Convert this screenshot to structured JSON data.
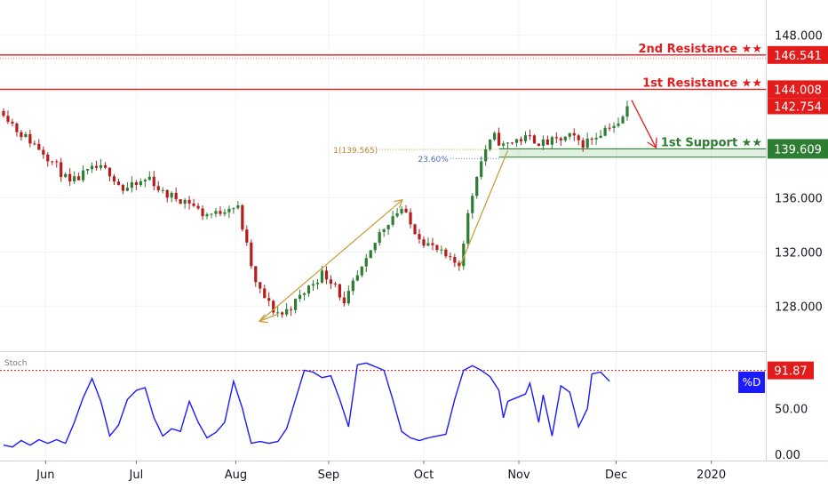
{
  "chart_data": [
    {
      "type": "candlestick",
      "panel": "price",
      "y_axis": {
        "ticks": [
          "148.000",
          "136.000",
          "132.000",
          "128.000"
        ],
        "tick_values": [
          148,
          136,
          132,
          128
        ],
        "ylim": [
          124.8,
          150.6
        ]
      },
      "x_axis": {
        "labels": [
          "Jun",
          "Jul",
          "Aug",
          "Sep",
          "Oct",
          "Nov",
          "Dec",
          "2020"
        ]
      },
      "price_series_anchors": [
        {
          "t": 0,
          "v": 142.4
        },
        {
          "t": 3,
          "v": 141.0
        },
        {
          "t": 6,
          "v": 140.2
        },
        {
          "t": 9,
          "v": 139.4
        },
        {
          "t": 12,
          "v": 138.3
        },
        {
          "t": 15,
          "v": 137.0
        },
        {
          "t": 18,
          "v": 137.7
        },
        {
          "t": 21,
          "v": 138.2
        },
        {
          "t": 24,
          "v": 137.9
        },
        {
          "t": 27,
          "v": 136.6
        },
        {
          "t": 30,
          "v": 136.9
        },
        {
          "t": 33,
          "v": 137.5
        },
        {
          "t": 36,
          "v": 136.3
        },
        {
          "t": 39,
          "v": 136.0
        },
        {
          "t": 42,
          "v": 135.7
        },
        {
          "t": 45,
          "v": 134.8
        },
        {
          "t": 48,
          "v": 134.8
        },
        {
          "t": 51,
          "v": 135.4
        },
        {
          "t": 53,
          "v": 135.2
        },
        {
          "t": 55,
          "v": 132.4
        },
        {
          "t": 57,
          "v": 129.6
        },
        {
          "t": 59,
          "v": 128.6
        },
        {
          "t": 61,
          "v": 127.7
        },
        {
          "t": 63,
          "v": 127.4
        },
        {
          "t": 66,
          "v": 128.3
        },
        {
          "t": 69,
          "v": 129.4
        },
        {
          "t": 72,
          "v": 130.4
        },
        {
          "t": 75,
          "v": 129.7
        },
        {
          "t": 77,
          "v": 128.0
        },
        {
          "t": 79,
          "v": 129.6
        },
        {
          "t": 82,
          "v": 131.2
        },
        {
          "t": 85,
          "v": 133.4
        },
        {
          "t": 88,
          "v": 134.7
        },
        {
          "t": 90,
          "v": 135.2
        },
        {
          "t": 92,
          "v": 134.0
        },
        {
          "t": 95,
          "v": 132.8
        },
        {
          "t": 98,
          "v": 132.1
        },
        {
          "t": 101,
          "v": 131.3
        },
        {
          "t": 103,
          "v": 131.1
        },
        {
          "t": 105,
          "v": 134.7
        },
        {
          "t": 107,
          "v": 137.8
        },
        {
          "t": 109,
          "v": 139.6
        },
        {
          "t": 111,
          "v": 140.5
        },
        {
          "t": 113,
          "v": 139.8
        },
        {
          "t": 116,
          "v": 140.3
        },
        {
          "t": 119,
          "v": 140.4
        },
        {
          "t": 122,
          "v": 140.0
        },
        {
          "t": 125,
          "v": 140.2
        },
        {
          "t": 128,
          "v": 140.5
        },
        {
          "t": 131,
          "v": 140.0
        },
        {
          "t": 134,
          "v": 140.6
        },
        {
          "t": 137,
          "v": 141.4
        },
        {
          "t": 139,
          "v": 141.3
        },
        {
          "t": 141,
          "v": 142.6
        }
      ],
      "levels": [
        {
          "name": "2nd Resistance",
          "label": "2nd Resistance ★★",
          "value": 146.541,
          "value_label": "146.541",
          "color": "#e31b1b"
        },
        {
          "name": "1st Resistance",
          "label": "1st Resistance ★★",
          "value": 144.008,
          "value_label": "144.008",
          "color": "#e31b1b"
        },
        {
          "name": "1st Support",
          "label": "1st Support ★★",
          "value": 139.609,
          "value_label": "139.609",
          "color": "#2e7d32"
        }
      ],
      "last_price": {
        "value": 142.754,
        "label": "142.754"
      },
      "fib": {
        "level_1": {
          "value": 139.565,
          "label": "1(139.565)"
        },
        "level_2": {
          "value": 138.9,
          "label": "23.60%"
        }
      },
      "colors": {
        "up": "#2e7d32",
        "down": "#b71c1c",
        "resistance": "#e31b1b",
        "support": "#2e7d32",
        "pattern": "#c8a03c",
        "arrow": "#e31b1b"
      }
    },
    {
      "type": "line",
      "panel": "oscillator",
      "title": "Stoch",
      "series": [
        {
          "name": "%D",
          "color": "#1a1aff",
          "anchors": [
            {
              "t": 0,
              "v": 10
            },
            {
              "t": 2,
              "v": 8
            },
            {
              "t": 4,
              "v": 15
            },
            {
              "t": 6,
              "v": 10
            },
            {
              "t": 8,
              "v": 16
            },
            {
              "t": 10,
              "v": 12
            },
            {
              "t": 12,
              "v": 16
            },
            {
              "t": 14,
              "v": 12
            },
            {
              "t": 16,
              "v": 35
            },
            {
              "t": 18,
              "v": 62
            },
            {
              "t": 20,
              "v": 83
            },
            {
              "t": 22,
              "v": 58
            },
            {
              "t": 24,
              "v": 20
            },
            {
              "t": 26,
              "v": 32
            },
            {
              "t": 28,
              "v": 60
            },
            {
              "t": 30,
              "v": 70
            },
            {
              "t": 32,
              "v": 73
            },
            {
              "t": 34,
              "v": 40
            },
            {
              "t": 36,
              "v": 20
            },
            {
              "t": 38,
              "v": 28
            },
            {
              "t": 40,
              "v": 25
            },
            {
              "t": 42,
              "v": 58
            },
            {
              "t": 44,
              "v": 35
            },
            {
              "t": 46,
              "v": 18
            },
            {
              "t": 48,
              "v": 24
            },
            {
              "t": 50,
              "v": 35
            },
            {
              "t": 52,
              "v": 80
            },
            {
              "t": 54,
              "v": 50
            },
            {
              "t": 56,
              "v": 12
            },
            {
              "t": 58,
              "v": 14
            },
            {
              "t": 60,
              "v": 12
            },
            {
              "t": 62,
              "v": 14
            },
            {
              "t": 64,
              "v": 28
            },
            {
              "t": 66,
              "v": 60
            },
            {
              "t": 68,
              "v": 92
            },
            {
              "t": 70,
              "v": 90
            },
            {
              "t": 72,
              "v": 84
            },
            {
              "t": 74,
              "v": 86
            },
            {
              "t": 76,
              "v": 60
            },
            {
              "t": 78,
              "v": 30
            },
            {
              "t": 80,
              "v": 98
            },
            {
              "t": 82,
              "v": 100
            },
            {
              "t": 84,
              "v": 96
            },
            {
              "t": 86,
              "v": 92
            },
            {
              "t": 88,
              "v": 60
            },
            {
              "t": 90,
              "v": 25
            },
            {
              "t": 92,
              "v": 18
            },
            {
              "t": 94,
              "v": 15
            },
            {
              "t": 96,
              "v": 18
            },
            {
              "t": 98,
              "v": 20
            },
            {
              "t": 100,
              "v": 22
            },
            {
              "t": 102,
              "v": 60
            },
            {
              "t": 104,
              "v": 92
            },
            {
              "t": 106,
              "v": 97
            },
            {
              "t": 108,
              "v": 92
            },
            {
              "t": 110,
              "v": 85
            },
            {
              "t": 112,
              "v": 70
            },
            {
              "t": 113,
              "v": 40
            },
            {
              "t": 114,
              "v": 58
            },
            {
              "t": 116,
              "v": 62
            },
            {
              "t": 118,
              "v": 66
            },
            {
              "t": 119,
              "v": 78
            },
            {
              "t": 121,
              "v": 35
            },
            {
              "t": 122,
              "v": 65
            },
            {
              "t": 124,
              "v": 20
            },
            {
              "t": 126,
              "v": 75
            },
            {
              "t": 128,
              "v": 68
            },
            {
              "t": 130,
              "v": 30
            },
            {
              "t": 132,
              "v": 50
            },
            {
              "t": 133,
              "v": 88
            },
            {
              "t": 135,
              "v": 90
            },
            {
              "t": 137,
              "v": 80
            }
          ]
        }
      ],
      "y_axis": {
        "ticks": [
          "50.00",
          "0.00"
        ],
        "tick_values": [
          50,
          0
        ],
        "ylim": [
          -2,
          110
        ]
      },
      "overbought_level": 91.87,
      "value_label": "91.87",
      "badge_label": "%D",
      "colors": {
        "line": "#1a1aff",
        "level": "#e31b1b",
        "badge_bg": "#1a1aff",
        "badge_fg": "#ffffff"
      }
    }
  ],
  "time_axis": {
    "n": 142,
    "month_marks": [
      9.5,
      30,
      52.5,
      73.5,
      95,
      116.5,
      138.5,
      160
    ]
  }
}
